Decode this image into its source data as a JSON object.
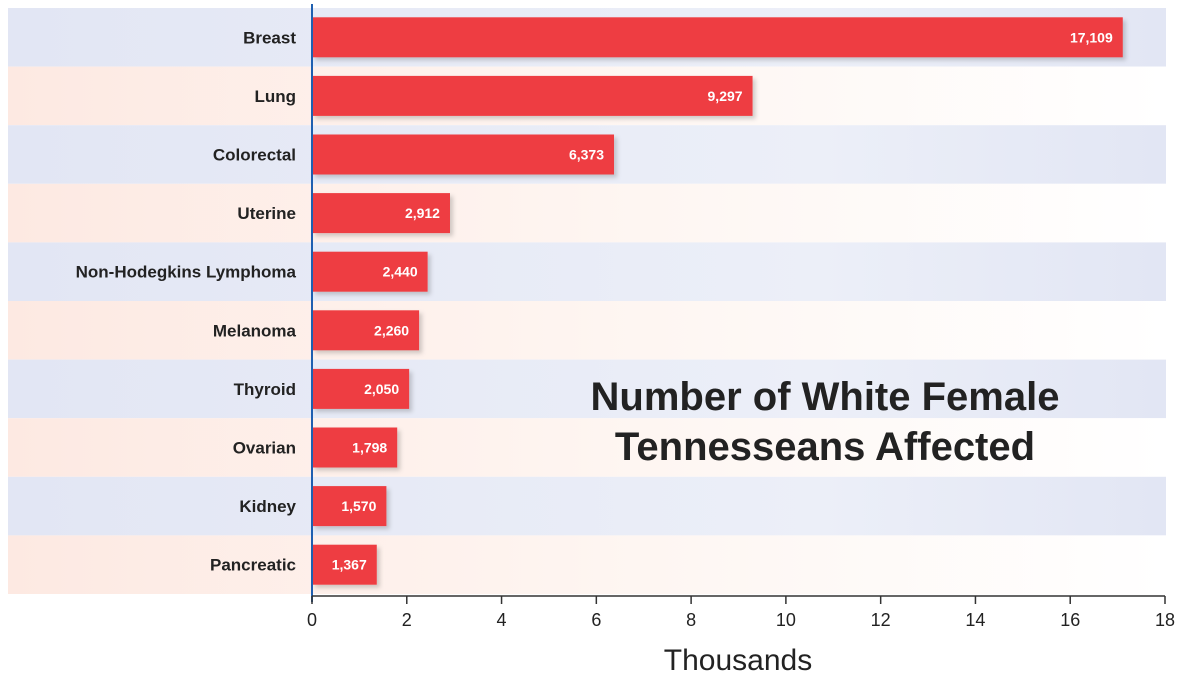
{
  "chart_data": {
    "type": "bar",
    "orientation": "horizontal",
    "title_lines": [
      "Number of White Female",
      "Tennesseans Affected"
    ],
    "xlabel": "Thousands",
    "ylabel": "",
    "xlim": [
      0,
      18
    ],
    "x_ticks": [
      "0",
      "2",
      "4",
      "6",
      "8",
      "10",
      "12",
      "14",
      "16",
      "18"
    ],
    "categories": [
      "Breast",
      "Lung",
      "Colorectal",
      "Uterine",
      "Non-Hodegkins Lymphoma",
      "Melanoma",
      "Thyroid",
      "Ovarian",
      "Kidney",
      "Pancreatic"
    ],
    "values": [
      17109,
      9297,
      6373,
      2912,
      2440,
      2260,
      2050,
      1798,
      1570,
      1367
    ],
    "value_labels": [
      "17,109",
      "9,297",
      "6,373",
      "2,912",
      "2,440",
      "2,260",
      "2,050",
      "1,798",
      "1,570",
      "1,367"
    ],
    "bar_color": "#ee3e42",
    "band_colors": [
      "#e4e7f4",
      "#fdf1ec"
    ],
    "axis_color": "#1f5fb0",
    "grid": false,
    "legend": "none"
  }
}
